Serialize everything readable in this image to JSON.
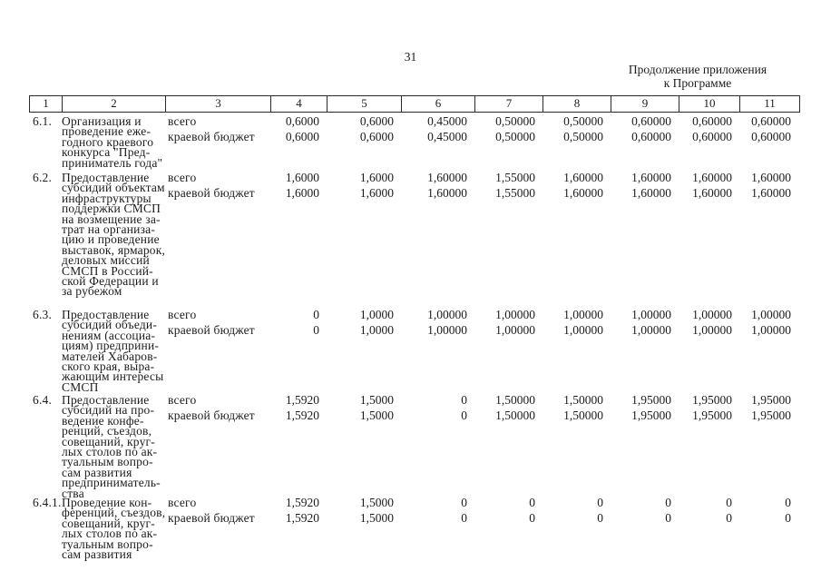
{
  "page": {
    "number": "31",
    "continuation_line1": "Продолжение приложения",
    "continuation_line2": "к Программе"
  },
  "table": {
    "columns": [
      "1",
      "2",
      "3",
      "4",
      "5",
      "6",
      "7",
      "8",
      "9",
      "10",
      "11"
    ],
    "rows": [
      {
        "num": "6.1.",
        "desc_lines": [
          "Организация и",
          "проведение еже-",
          "годного краевого",
          "конкурса \"Пред-",
          "приниматель года\""
        ],
        "labels": [
          "всего",
          "краевой бюджет"
        ],
        "values_total": [
          "0,6000",
          "0,6000",
          "0,45000",
          "0,50000",
          "0,50000",
          "0,60000",
          "0,60000",
          "0,60000"
        ],
        "values_regional": [
          "0,6000",
          "0,6000",
          "0,45000",
          "0,50000",
          "0,50000",
          "0,60000",
          "0,60000",
          "0,60000"
        ]
      },
      {
        "num": "6.2.",
        "desc_lines": [
          "Предоставление",
          "субсидий объектам",
          "инфраструктуры",
          "поддержки СМСП",
          "на возмещение за-",
          "трат на организа-",
          "цию и проведение",
          "выставок, ярмарок,",
          "деловых миссий",
          "СМСП в Россий-",
          "ской Федерации и",
          "за рубежом"
        ],
        "labels": [
          "всего",
          "краевой бюджет"
        ],
        "values_total": [
          "1,6000",
          "1,6000",
          "1,60000",
          "1,55000",
          "1,60000",
          "1,60000",
          "1,60000",
          "1,60000"
        ],
        "values_regional": [
          "1,6000",
          "1,6000",
          "1,60000",
          "1,55000",
          "1,60000",
          "1,60000",
          "1,60000",
          "1,60000"
        ]
      },
      {
        "num": "6.3.",
        "desc_lines": [
          "Предоставление",
          "субсидий объеди-",
          "нениям (ассоциа-",
          "циям) предприни-",
          "мателей Хабаров-",
          "ского края, выра-",
          "жающим интересы",
          "СМСП"
        ],
        "labels": [
          "всего",
          "краевой бюджет"
        ],
        "values_total": [
          "0",
          "1,0000",
          "1,00000",
          "1,00000",
          "1,00000",
          "1,00000",
          "1,00000",
          "1,00000"
        ],
        "values_regional": [
          "0",
          "1,0000",
          "1,00000",
          "1,00000",
          "1,00000",
          "1,00000",
          "1,00000",
          "1,00000"
        ]
      },
      {
        "num": "6.4.",
        "desc_lines": [
          "Предоставление",
          "субсидий на про-",
          "ведение конфе-",
          "ренций, съездов,",
          "совещаний, круг-",
          "лых столов по ак-",
          "туальным вопро-",
          "сам развития",
          "предприниматель-",
          "ства"
        ],
        "labels": [
          "всего",
          "краевой бюджет"
        ],
        "values_total": [
          "1,5920",
          "1,5000",
          "0",
          "1,50000",
          "1,50000",
          "1,95000",
          "1,95000",
          "1,95000"
        ],
        "values_regional": [
          "1,5920",
          "1,5000",
          "0",
          "1,50000",
          "1,50000",
          "1,95000",
          "1,95000",
          "1,95000"
        ]
      },
      {
        "num": "6.4.1.",
        "desc_lines": [
          "Проведение кон-",
          "ференций, съездов,",
          "совещаний, круг-",
          "лых столов по ак-",
          "туальным вопро-",
          "сам развития"
        ],
        "labels": [
          "всего",
          "краевой бюджет"
        ],
        "values_total": [
          "1,5920",
          "1,5000",
          "0",
          "0",
          "0",
          "0",
          "0",
          "0"
        ],
        "values_regional": [
          "1,5920",
          "1,5000",
          "0",
          "0",
          "0",
          "0",
          "0",
          "0"
        ]
      }
    ]
  }
}
